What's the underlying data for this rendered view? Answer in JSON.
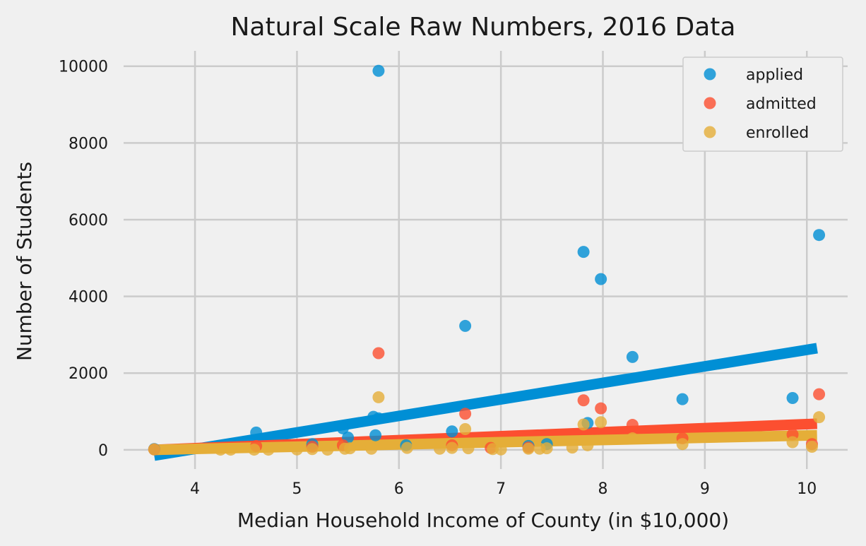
{
  "chart_data": {
    "type": "scatter",
    "title": "Natural Scale Raw Numbers, 2016 Data",
    "xlabel": "Median Household Income of County (in $10,000)",
    "ylabel": "Number of Students",
    "xlim": [
      3.3,
      10.4
    ],
    "ylim": [
      -500,
      10400
    ],
    "xticks": [
      4,
      5,
      6,
      7,
      8,
      9,
      10
    ],
    "yticks": [
      0,
      2000,
      4000,
      6000,
      8000,
      10000
    ],
    "grid": true,
    "legend_position": "top-right",
    "series": [
      {
        "name": "applied",
        "color": "#008fd5",
        "points": [
          [
            3.6,
            20
          ],
          [
            4.6,
            450
          ],
          [
            5.45,
            560
          ],
          [
            5.5,
            320
          ],
          [
            5.75,
            860
          ],
          [
            5.77,
            380
          ],
          [
            5.8,
            9880
          ],
          [
            5.8,
            820
          ],
          [
            6.52,
            480
          ],
          [
            6.65,
            3230
          ],
          [
            7.81,
            5160
          ],
          [
            7.85,
            700
          ],
          [
            7.98,
            4450
          ],
          [
            8.29,
            2420
          ],
          [
            8.78,
            1320
          ],
          [
            9.86,
            1350
          ],
          [
            10.12,
            5600
          ],
          [
            5.15,
            150
          ],
          [
            6.07,
            120
          ],
          [
            7.27,
            100
          ],
          [
            7.45,
            150
          ]
        ],
        "trend": [
          [
            3.6,
            -150
          ],
          [
            10.1,
            2650
          ]
        ]
      },
      {
        "name": "admitted",
        "color": "#fc4f30",
        "points": [
          [
            3.6,
            10
          ],
          [
            4.6,
            100
          ],
          [
            5.15,
            80
          ],
          [
            5.45,
            120
          ],
          [
            5.8,
            2520
          ],
          [
            6.52,
            120
          ],
          [
            6.65,
            940
          ],
          [
            7.81,
            1290
          ],
          [
            7.98,
            1080
          ],
          [
            8.29,
            650
          ],
          [
            8.78,
            300
          ],
          [
            9.86,
            400
          ],
          [
            10.05,
            150
          ],
          [
            10.12,
            1450
          ],
          [
            7.27,
            60
          ],
          [
            6.9,
            50
          ]
        ],
        "trend": [
          [
            3.6,
            0
          ],
          [
            10.1,
            680
          ]
        ]
      },
      {
        "name": "enrolled",
        "color": "#e5ae38",
        "points": [
          [
            3.6,
            10
          ],
          [
            4.25,
            5
          ],
          [
            4.35,
            5
          ],
          [
            4.58,
            5
          ],
          [
            4.72,
            5
          ],
          [
            5.0,
            10
          ],
          [
            5.15,
            20
          ],
          [
            5.3,
            5
          ],
          [
            5.47,
            30
          ],
          [
            5.52,
            40
          ],
          [
            5.73,
            30
          ],
          [
            5.8,
            1370
          ],
          [
            6.08,
            50
          ],
          [
            6.4,
            30
          ],
          [
            6.52,
            50
          ],
          [
            6.65,
            540
          ],
          [
            6.68,
            40
          ],
          [
            6.92,
            20
          ],
          [
            7.0,
            10
          ],
          [
            7.27,
            30
          ],
          [
            7.38,
            30
          ],
          [
            7.45,
            40
          ],
          [
            7.7,
            60
          ],
          [
            7.81,
            660
          ],
          [
            7.85,
            120
          ],
          [
            7.98,
            720
          ],
          [
            8.29,
            300
          ],
          [
            8.78,
            150
          ],
          [
            9.86,
            200
          ],
          [
            10.05,
            80
          ],
          [
            10.12,
            850
          ]
        ],
        "trend": [
          [
            3.6,
            0
          ],
          [
            10.1,
            380
          ]
        ]
      }
    ]
  }
}
